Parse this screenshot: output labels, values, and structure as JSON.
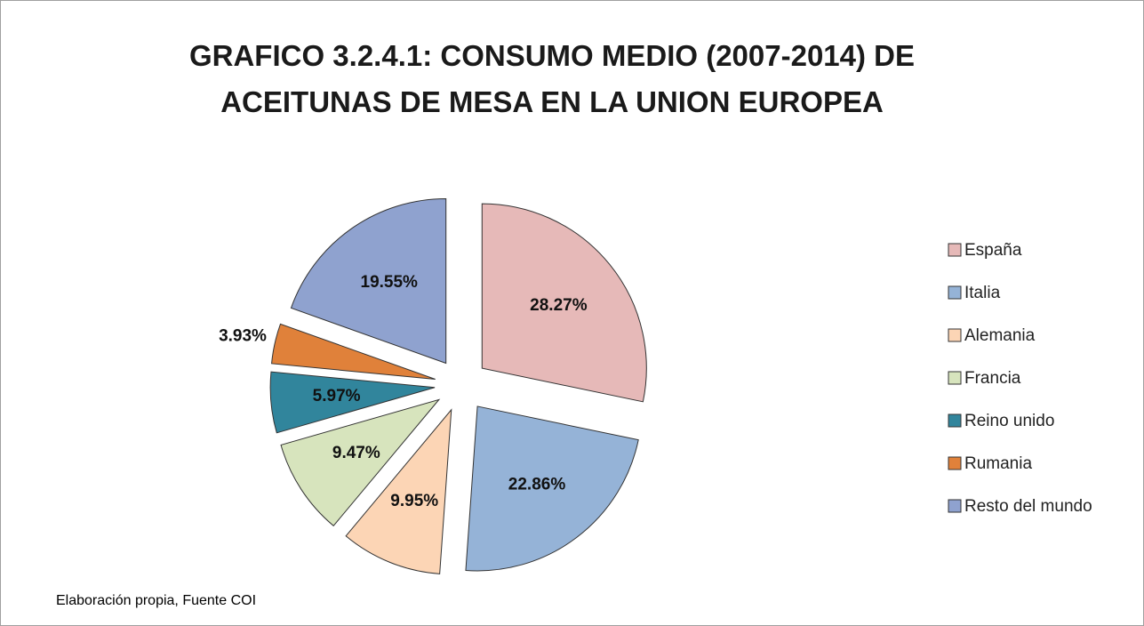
{
  "chart_data": {
    "type": "pie",
    "title": "GRAFICO 3.2.4.1: CONSUMO MEDIO (2007-2014) DE ACEITUNAS DE MESA EN LA UNION EUROPEA",
    "categories": [
      "España",
      "Italia",
      "Alemania",
      "Francia",
      "Reino unido",
      "Rumania",
      "Resto del mundo"
    ],
    "values": [
      28.27,
      22.86,
      9.95,
      9.47,
      5.97,
      3.93,
      19.55
    ],
    "value_labels": [
      "28.27%",
      "22.86%",
      "9.95%",
      "9.47%",
      "5.97%",
      "3.93%",
      "19.55%"
    ],
    "colors": [
      "#e6b9b8",
      "#95b3d7",
      "#fcd5b5",
      "#d7e4bd",
      "#31859c",
      "#e0813a",
      "#8fa2cf"
    ],
    "legend": "right",
    "note": "Elaboración propia, Fuente  COI"
  }
}
